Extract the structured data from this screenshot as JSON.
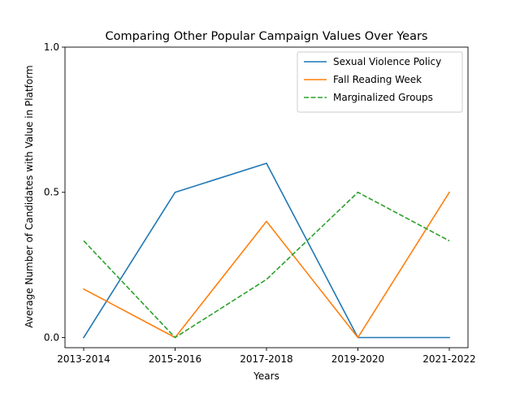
{
  "chart_data": {
    "type": "line",
    "title": "Comparing Other Popular Campaign Values Over Years",
    "xlabel": "Years",
    "ylabel": "Average Number of Candidates with Value in Platform",
    "categories": [
      "2013-2014",
      "2015-2016",
      "2017-2018",
      "2019-2020",
      "2021-2022"
    ],
    "y_ticks": [
      "0.0",
      "0.5",
      "1.0"
    ],
    "y_tick_values": [
      0,
      0.5,
      1.0
    ],
    "ylim": [
      -0.035,
      1.0
    ],
    "grid": false,
    "legend_position": "upper right",
    "series": [
      {
        "name": "Sexual Violence Policy",
        "values": [
          0.0,
          0.5,
          0.6,
          0.0,
          0.0
        ],
        "color": "#1f77b4",
        "style": "solid"
      },
      {
        "name": "Fall Reading Week",
        "values": [
          0.167,
          0.0,
          0.4,
          0.0,
          0.5
        ],
        "color": "#ff7f0e",
        "style": "solid"
      },
      {
        "name": "Marginalized Groups",
        "values": [
          0.333,
          0.0,
          0.2,
          0.5,
          0.333
        ],
        "color": "#2ca02c",
        "style": "dashed"
      }
    ]
  }
}
